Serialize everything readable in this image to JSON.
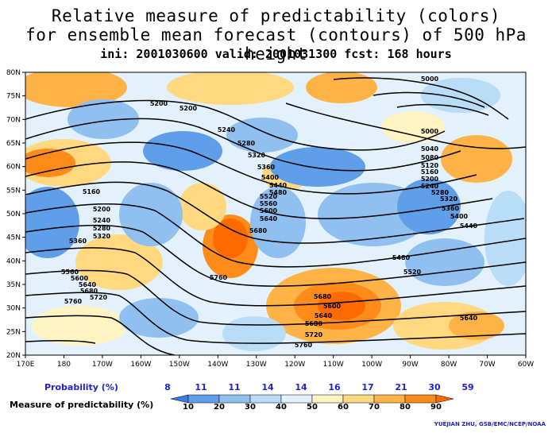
{
  "title": {
    "line1": "Relative measure of predictability (colors)",
    "line2": "for ensemble mean forecast (contours) of 500 hPa height",
    "line3": "ini: 2001030600 valid: 2001031300 fcst: 168 hours"
  },
  "lat_labels": [
    "80N",
    "75N",
    "70N",
    "65N",
    "60N",
    "55N",
    "50N",
    "45N",
    "40N",
    "35N",
    "30N",
    "25N",
    "20N"
  ],
  "lon_labels": [
    "170E",
    "180",
    "170W",
    "160W",
    "150W",
    "140W",
    "130W",
    "120W",
    "110W",
    "100W",
    "90W",
    "80W",
    "70W",
    "60W"
  ],
  "contour_labels": [
    "5200",
    "5200",
    "5240",
    "5280",
    "5320",
    "5360",
    "5400",
    "5440",
    "5480",
    "5520",
    "5560",
    "5600",
    "5640",
    "5680",
    "5760",
    "5160",
    "5200",
    "5240",
    "5280",
    "5320",
    "5360",
    "5560",
    "5600",
    "5640",
    "5680",
    "5720",
    "5760",
    "5000",
    "5000",
    "5040",
    "5080",
    "5120",
    "5160",
    "5200",
    "5240",
    "5280",
    "5320",
    "5360",
    "5400",
    "5440",
    "5480",
    "5520",
    "5680",
    "5600",
    "5640",
    "5680",
    "5720",
    "5760",
    "5640"
  ],
  "legend": {
    "prob_title": "Probability (%)",
    "prob_values": [
      "8",
      "11",
      "11",
      "14",
      "14",
      "16",
      "17",
      "21",
      "30",
      "59"
    ],
    "measure_title": "Measure of predictability (%)",
    "measure_values": [
      "10",
      "20",
      "30",
      "40",
      "50",
      "60",
      "70",
      "80",
      "90"
    ],
    "colors": [
      "#3a7de0",
      "#5f9ee8",
      "#8fc0f0",
      "#b9dcf7",
      "#e2f1fb",
      "#fff3c2",
      "#ffd880",
      "#ffb347",
      "#ff8c1a",
      "#ff6a00"
    ]
  },
  "credit": "YUEJIAN ZHU, GSB/EMC/NCEP/NOAA"
}
